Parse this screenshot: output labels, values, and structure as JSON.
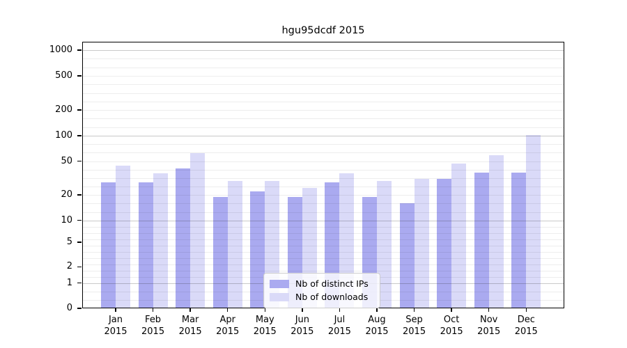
{
  "title": "hgu95dcdf 2015",
  "chart_data": {
    "type": "bar",
    "title": "hgu95dcdf 2015",
    "categories": [
      "Jan",
      "Feb",
      "Mar",
      "Apr",
      "May",
      "Jun",
      "Jul",
      "Aug",
      "Sep",
      "Oct",
      "Nov",
      "Dec"
    ],
    "year": "2015",
    "series": [
      {
        "name": "Nb of distinct IPs",
        "color": "#aaaaf0",
        "values": [
          28,
          28,
          41,
          19,
          22,
          19,
          28,
          19,
          16,
          31,
          37,
          37
        ]
      },
      {
        "name": "Nb of downloads",
        "color": "#dadaf8",
        "values": [
          44,
          36,
          62,
          29,
          29,
          24,
          36,
          29,
          31,
          47,
          59,
          101
        ]
      }
    ],
    "xlabel": "",
    "ylabel": "",
    "yticks": [
      1000,
      500,
      200,
      100,
      50,
      20,
      10,
      5,
      2,
      1,
      0
    ],
    "yscale": "log above 1, 0 pinned to baseline",
    "ylim": [
      0,
      1250
    ],
    "grid": "horizontal, faint minors with darker lines at 1, 10, 100, 1000",
    "legend_position": "inside bottom-center"
  }
}
